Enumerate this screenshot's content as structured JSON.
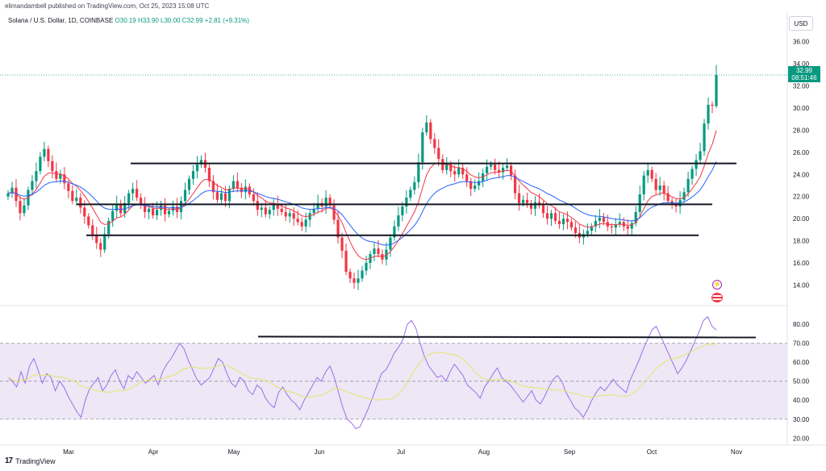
{
  "header": {
    "publisher": "elimandambell published on TradingView.com, Oct 25, 2023 15:08 UTC"
  },
  "legend": {
    "symbol": "Solana / U.S. Dollar, 1D, COINBASE",
    "open": "O30.19",
    "high": "H33.90",
    "low": "L30.00",
    "close": "C32.99",
    "change": "+2.81 (+9.31%)"
  },
  "currency": "USD",
  "last_price": {
    "value": "32.99",
    "countdown": "08:51:46"
  },
  "footer": {
    "logo": "17",
    "brand": "TradingView"
  },
  "colors": {
    "up": "#089981",
    "down": "#f23645",
    "ema_fast": "#f23645",
    "ema_slow": "#2962ff",
    "rsi": "#9c6ee8",
    "rsi_ma": "#e8e46a",
    "rsi_band": "#ede7f6"
  },
  "chart_data": [
    {
      "type": "candlestick",
      "ylim": [
        12.5,
        37
      ],
      "y_ticks": [
        "14.00",
        "16.00",
        "18.00",
        "20.00",
        "22.00",
        "24.00",
        "26.00",
        "28.00",
        "30.00",
        "32.00",
        "34.00",
        "36.00"
      ],
      "x_ticks": [
        "Mar",
        "Apr",
        "May",
        "Jun",
        "Jul",
        "Aug",
        "Sep",
        "Oct",
        "Nov"
      ],
      "close_series": [
        22.3,
        22.8,
        21.6,
        20.5,
        21.2,
        22.6,
        23.4,
        24.3,
        25.6,
        26.3,
        25.2,
        24.3,
        23.6,
        24.0,
        23.2,
        22.5,
        21.6,
        21.9,
        21.0,
        20.2,
        19.4,
        18.5,
        17.8,
        17.2,
        18.6,
        19.8,
        20.7,
        21.3,
        20.5,
        21.4,
        22.3,
        22.7,
        21.9,
        21.3,
        20.6,
        20.9,
        20.3,
        20.8,
        21.2,
        20.4,
        20.7,
        21.1,
        20.6,
        21.6,
        22.6,
        23.6,
        24.3,
        24.9,
        25.3,
        24.6,
        23.4,
        22.4,
        21.7,
        22.3,
        21.6,
        22.7,
        23.4,
        22.8,
        22.4,
        22.9,
        22.2,
        21.6,
        20.8,
        21.0,
        20.4,
        20.8,
        21.3,
        20.9,
        20.6,
        20.2,
        20.5,
        20.0,
        19.7,
        19.3,
        19.9,
        20.5,
        20.9,
        21.4,
        21.1,
        21.9,
        21.2,
        19.9,
        18.3,
        17.1,
        15.2,
        14.6,
        14.2,
        14.6,
        15.3,
        16.0,
        16.8,
        17.3,
        16.8,
        16.3,
        17.2,
        18.3,
        19.3,
        20.3,
        21.1,
        21.9,
        22.6,
        23.3,
        25.1,
        27.8,
        28.7,
        27.2,
        26.4,
        25.4,
        24.4,
        24.9,
        24.3,
        24.0,
        24.6,
        24.0,
        23.4,
        22.7,
        23.0,
        23.4,
        24.1,
        24.7,
        24.9,
        24.4,
        24.2,
        24.6,
        24.8,
        23.9,
        22.3,
        21.4,
        21.7,
        21.4,
        20.9,
        21.5,
        21.2,
        20.5,
        20.0,
        20.5,
        19.8,
        19.5,
        20.0,
        19.7,
        19.2,
        18.7,
        18.3,
        18.6,
        18.9,
        19.3,
        19.8,
        20.1,
        19.7,
        19.3,
        19.2,
        19.5,
        19.7,
        19.3,
        19.1,
        19.6,
        20.6,
        22.2,
        23.9,
        24.4,
        23.6,
        22.6,
        23.0,
        22.3,
        21.6,
        21.3,
        21.1,
        21.7,
        22.4,
        23.6,
        24.5,
        25.3,
        26.1,
        28.6,
        30.3,
        30.2,
        32.99
      ],
      "ema_fast": "red moving average",
      "ema_slow": "blue moving average",
      "lines": [
        {
          "name": "resistance",
          "y": 25.0
        },
        {
          "name": "mid-level",
          "y": 21.3
        },
        {
          "name": "support",
          "y": 18.5
        }
      ]
    },
    {
      "type": "line",
      "ylim": [
        18,
        86
      ],
      "y_ticks": [
        "20.00",
        "30.00",
        "40.00",
        "50.00",
        "60.00",
        "70.00",
        "80.00"
      ],
      "band": [
        30,
        70
      ],
      "level_line": 73.5,
      "rsi": [
        52,
        50,
        47,
        55,
        49,
        58,
        62,
        56,
        49,
        54,
        52,
        45,
        50,
        47,
        42,
        38,
        34,
        31,
        40,
        46,
        49,
        52,
        45,
        48,
        53,
        56,
        50,
        46,
        53,
        51,
        55,
        52,
        49,
        51,
        53,
        48,
        55,
        59,
        62,
        66,
        70,
        67,
        61,
        56,
        51,
        48,
        50,
        52,
        57,
        62,
        60,
        54,
        49,
        47,
        52,
        50,
        45,
        43,
        48,
        46,
        41,
        38,
        36,
        44,
        47,
        43,
        40,
        38,
        35,
        40,
        44,
        48,
        52,
        50,
        55,
        58,
        52,
        44,
        36,
        30,
        28,
        25,
        26,
        31,
        36,
        42,
        48,
        54,
        56,
        60,
        65,
        68,
        72,
        80,
        82,
        78,
        70,
        63,
        58,
        55,
        52,
        53,
        50,
        55,
        59,
        56,
        53,
        48,
        46,
        44,
        41,
        47,
        50,
        54,
        57,
        52,
        50,
        48,
        45,
        42,
        39,
        42,
        45,
        40,
        38,
        42,
        47,
        51,
        53,
        50,
        44,
        40,
        36,
        34,
        31,
        35,
        40,
        44,
        47,
        45,
        48,
        51,
        48,
        46,
        44,
        51,
        56,
        61,
        67,
        72,
        77,
        79,
        74,
        69,
        64,
        59,
        54,
        57,
        61,
        66,
        71,
        76,
        82,
        84,
        79,
        77
      ]
    }
  ]
}
